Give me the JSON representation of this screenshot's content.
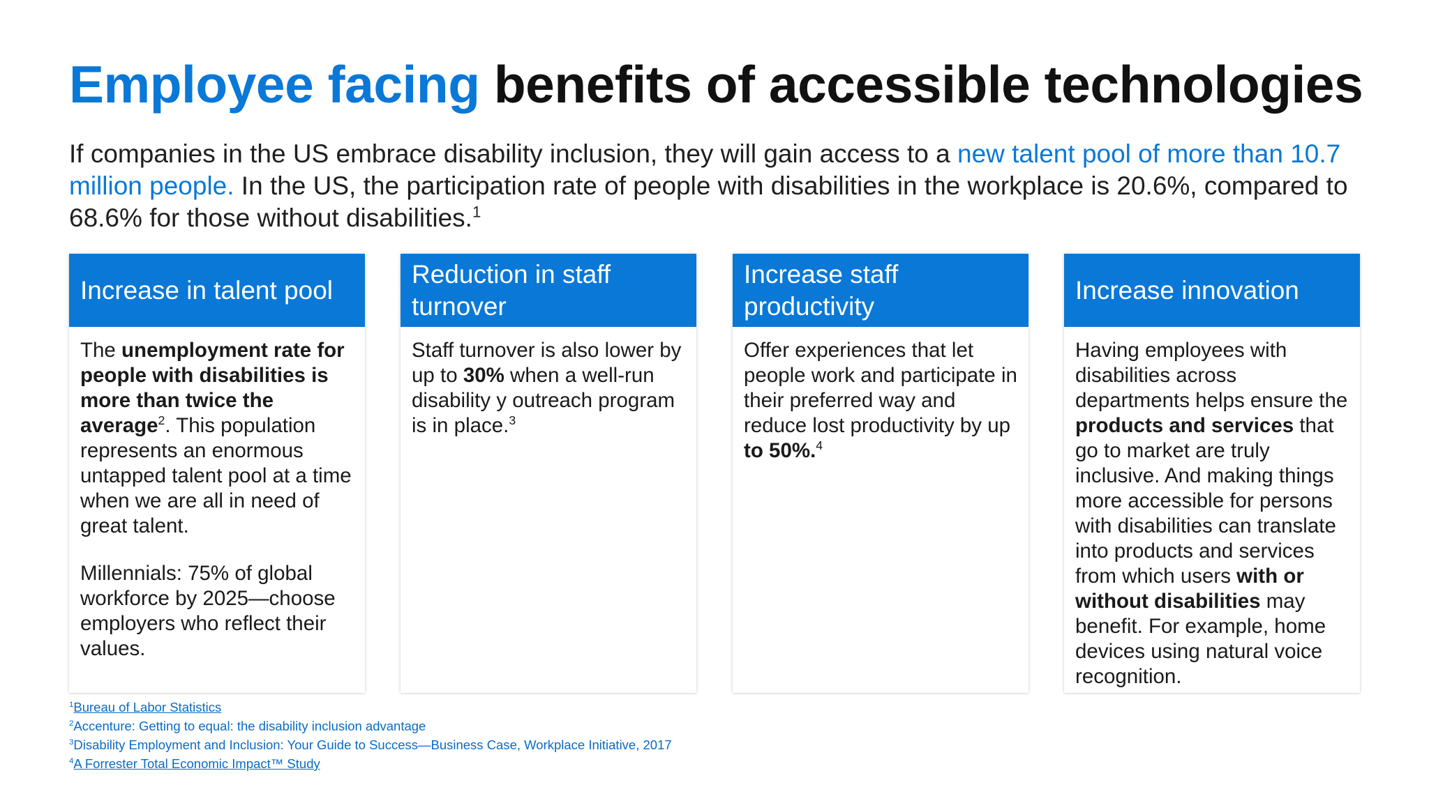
{
  "title": {
    "accent": "Employee facing",
    "rest": " benefits of accessible technologies"
  },
  "intro": {
    "part1": "If companies in the US embrace disability inclusion, they will gain access to a ",
    "highlight": "new talent pool of more than 10.7 million people.",
    "part2": " In the US, the participation rate of people with disabilities in the workplace is 20.6%, compared to 68.6% for those without disabilities.",
    "sup": "1"
  },
  "cards": [
    {
      "header": "Increase in talent pool",
      "p1_t1": "The ",
      "p1_b1": "unemployment rate for people with disabilities is more than twice the average",
      "p1_sup": "2",
      "p1_t2": ". This population represents an enormous untapped talent pool at a time when we are all in need of great talent.",
      "p2": "Millennials: 75% of global workforce by 2025—choose employers who reflect their values."
    },
    {
      "header": "Reduction in staff turnover",
      "t1": "Staff turnover is also lower by up to ",
      "b1": "30%",
      "t2": " when a well-run disability y outreach program is in place.",
      "sup": "3"
    },
    {
      "header": "Increase staff productivity",
      "t1": "Offer experiences that let people work and participate in their preferred way and reduce lost productivity by up ",
      "b1": "to 50%.",
      "sup": "4"
    },
    {
      "header": "Increase  innovation",
      "t1": "Having employees with disabilities across departments helps ensure the ",
      "b1": "products and services",
      "t2": " that go to market are truly inclusive. And making things more accessible for persons with disabilities can translate into products and services from which users ",
      "b2": "with or without disabilities",
      "t3": " may benefit. For example, home devices using natural voice recognition."
    }
  ],
  "footnotes": [
    {
      "num": "1",
      "text": "Bureau of Labor Statistics "
    },
    {
      "num": "2",
      "text": "Accenture: Getting to equal: the disability inclusion advantage"
    },
    {
      "num": "3",
      "text": "Disability Employment and Inclusion: Your Guide to Success—Business Case, Workplace Initiative, 2017"
    },
    {
      "num": "4",
      "text": "A Forrester Total Economic Impact™ Study"
    }
  ],
  "colors": {
    "accent": "#0a78d7",
    "footnote_link": "#0a6cc5",
    "text": "#1a1a1a"
  }
}
